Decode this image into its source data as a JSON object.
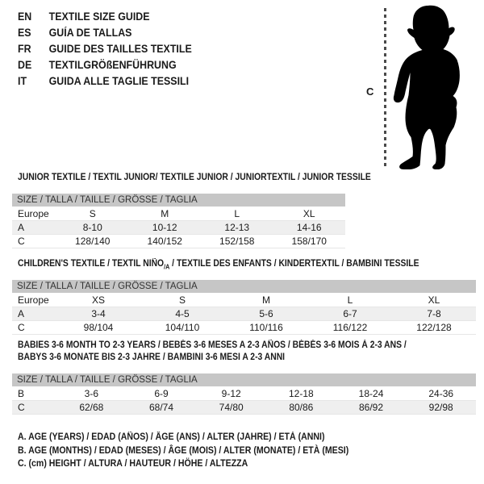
{
  "page": {
    "languages": [
      {
        "code": "EN",
        "label": "TEXTILE SIZE GUIDE"
      },
      {
        "code": "ES",
        "label": "GUÍA DE TALLAS"
      },
      {
        "code": "FR",
        "label": "GUIDE DES TAILLES TEXTILE"
      },
      {
        "code": "DE",
        "label": "TEXTILGRÖßENFÜHRUNG"
      },
      {
        "code": "IT",
        "label": "GUIDA ALLE TAGLIE TESSILI"
      }
    ],
    "figure": {
      "measure_label": "C",
      "silhouette": "standing-baby-silhouette"
    },
    "tables": [
      {
        "title_lines": [
          [
            {
              "text": "JUNIOR TEXTILE / TEXTIL JUNIOR/ TEXTILE JUNIOR / JUNIORTEXTIL / JUNIOR TESSILE"
            }
          ]
        ],
        "size_header": "SIZE / TALLA / TAILLE / GRÖSSE / TAGLIA",
        "rows": [
          {
            "label": "Europe",
            "values": [
              "S",
              "M",
              "L",
              "XL"
            ],
            "shaded": false
          },
          {
            "label": "A",
            "values": [
              "8-10",
              "10-12",
              "12-13",
              "14-16"
            ],
            "shaded": true
          },
          {
            "label": "C",
            "values": [
              "128/140",
              "140/152",
              "152/158",
              "158/170"
            ],
            "shaded": false
          }
        ]
      },
      {
        "title_lines": [
          [
            {
              "text": "CHILDREN'S TEXTILE / TEXTIL NIÑO"
            },
            {
              "text": "/A",
              "sub": true
            },
            {
              "text": " / TEXTILE DES ENFANTS / KINDERTEXTIL / BAMBINI TESSILE"
            }
          ]
        ],
        "size_header": "SIZE / TALLA / TAILLE / GRÖSSE / TAGLIA",
        "rows": [
          {
            "label": "Europe",
            "values": [
              "XS",
              "S",
              "M",
              "L",
              "XL"
            ],
            "shaded": false
          },
          {
            "label": "A",
            "values": [
              "3-4",
              "4-5",
              "5-6",
              "6-7",
              "7-8"
            ],
            "shaded": true
          },
          {
            "label": "C",
            "values": [
              "98/104",
              "104/110",
              "110/116",
              "116/122",
              "122/128"
            ],
            "shaded": false
          }
        ]
      },
      {
        "title_lines": [
          [
            {
              "text": "BABIES 3-6 MONTH TO 2-3 YEARS / BEBÉS 3-6 MESES A 2-3 AÑOS / BÉBÉS 3-6 MOIS À 2-3 ANS /"
            }
          ],
          [
            {
              "text": "BABYS 3-6 MONATE BIS 2-3 JAHRE / BAMBINI 3-6 MESI A 2-3 ANNI"
            }
          ]
        ],
        "size_header": "SIZE / TALLA / TAILLE / GRÖSSE / TAGLIA",
        "rows": [
          {
            "label": "B",
            "values": [
              "3-6",
              "6-9",
              "9-12",
              "12-18",
              "18-24",
              "24-36"
            ],
            "shaded": false
          },
          {
            "label": "C",
            "values": [
              "62/68",
              "68/74",
              "74/80",
              "80/86",
              "86/92",
              "92/98"
            ],
            "shaded": true
          }
        ]
      }
    ],
    "footnotes": [
      "A. AGE (YEARS) / EDAD (AÑOS) / ÂGE (ANS) / ALTER (JAHRE) / ETÀ (ANNI)",
      "B. AGE (MONTHS) / EDAD (MESES) / ÂGE (MOIS) / ALTER (MONATE) / ETÀ (MESI)",
      "C. (cm) HEIGHT / ALTURA / HAUTEUR / HÖHE / ALTEZZA"
    ],
    "colors": {
      "header_bar": "#c6c6c6",
      "stripe_row": "#efefef",
      "text": "#1a1a1a",
      "silhouette": "#000000"
    }
  }
}
